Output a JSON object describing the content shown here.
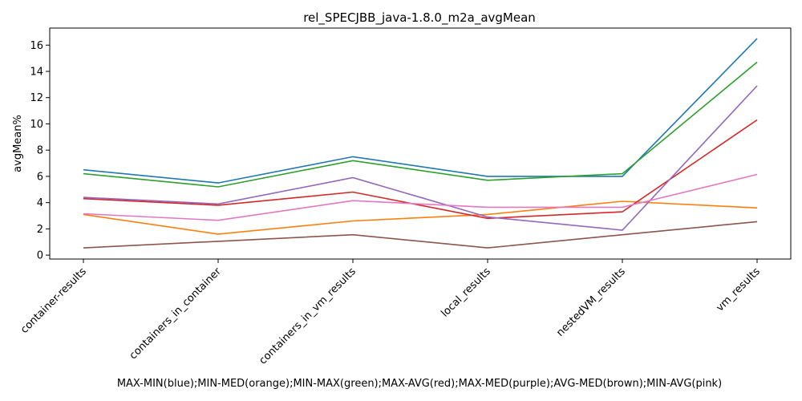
{
  "chart_data": {
    "type": "line",
    "title": "rel_SPECJBB_java-1.8.0_m2a_avgMean",
    "xlabel": "MAX-MIN(blue);MIN-MED(orange);MIN-MAX(green);MAX-AVG(red);MAX-MED(purple);AVG-MED(brown);MIN-AVG(pink)",
    "ylabel": "avgMean%",
    "categories": [
      "container-results",
      "containers_in_container",
      "containers_in_vm_results",
      "local_results",
      "nestedVM_results",
      "vm_results"
    ],
    "ylim": [
      -0.3,
      17.3
    ],
    "yticks": [
      0,
      2,
      4,
      6,
      8,
      10,
      12,
      14,
      16
    ],
    "grid": false,
    "legend": "none",
    "series": [
      {
        "color": "#1f77b4",
        "values": [
          6.5,
          5.5,
          7.5,
          6.0,
          6.0,
          16.5
        ]
      },
      {
        "color": "#ff7f0e",
        "values": [
          3.1,
          1.6,
          2.6,
          3.1,
          4.1,
          3.6
        ]
      },
      {
        "color": "#2ca02c",
        "values": [
          6.2,
          5.2,
          7.2,
          5.7,
          6.2,
          14.7
        ]
      },
      {
        "color": "#d62728",
        "values": [
          4.3,
          3.8,
          4.8,
          2.8,
          3.3,
          10.3
        ]
      },
      {
        "color": "#9467bd",
        "values": [
          4.4,
          3.9,
          5.9,
          2.9,
          1.9,
          12.9
        ]
      },
      {
        "color": "#8c564b",
        "values": [
          0.55,
          1.05,
          1.55,
          0.55,
          1.55,
          2.55
        ]
      },
      {
        "color": "#e377c2",
        "values": [
          3.15,
          2.65,
          4.15,
          3.65,
          3.65,
          6.15
        ]
      }
    ]
  }
}
